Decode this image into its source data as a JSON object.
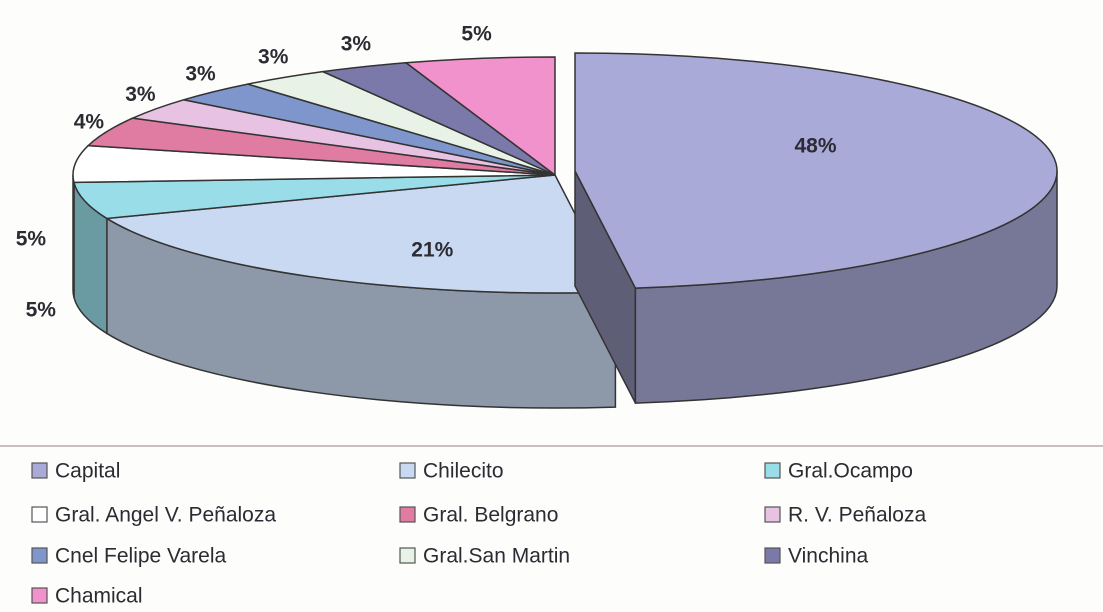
{
  "chart_data": {
    "type": "pie",
    "categories": [
      "Capital",
      "Chilecito",
      "Gral.Ocampo",
      "Gral. Angel V. Peñaloza",
      "Gral. Belgrano",
      "R. V. Peñaloza",
      "Cnel Felipe Varela",
      "Gral.San Martin",
      "Vinchina",
      "Chamical"
    ],
    "values": [
      48,
      21,
      5,
      5,
      4,
      3,
      3,
      3,
      3,
      5
    ],
    "value_labels": [
      "48%",
      "21%",
      "5%",
      "5%",
      "4%",
      "3%",
      "3%",
      "3%",
      "3%",
      "5%"
    ],
    "colors": [
      "#aaaad8",
      "#c9d9f2",
      "#98dde8",
      "#ffffff",
      "#e07ca2",
      "#e8c2e2",
      "#7f96cc",
      "#e8f2e6",
      "#7b78aa",
      "#f292cc"
    ],
    "legend": "bottom"
  }
}
